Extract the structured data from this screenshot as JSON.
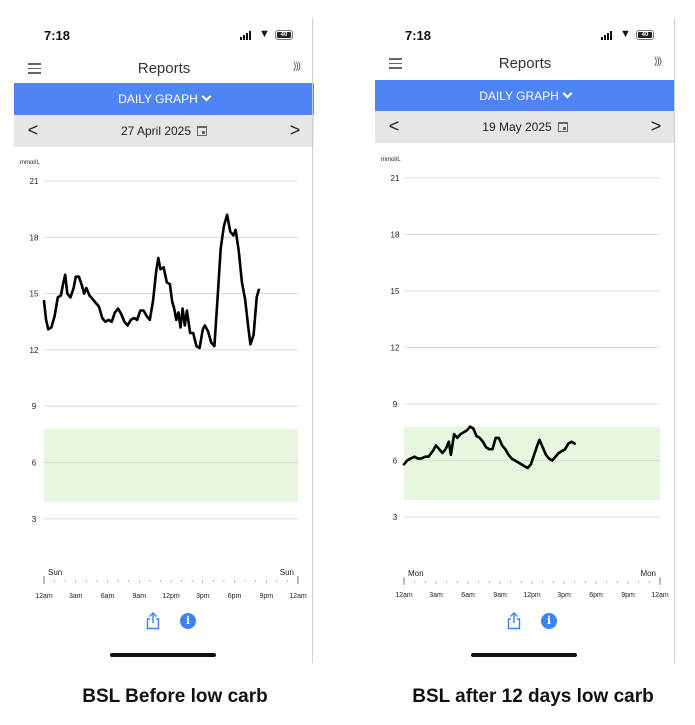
{
  "screens": [
    {
      "status": {
        "time": "7:18",
        "battery": "40"
      },
      "header": {
        "title": "Reports"
      },
      "graph_selector": {
        "label": "DAILY GRAPH"
      },
      "date_nav": {
        "prev": "<",
        "date": "27 April 2025",
        "next": ">"
      },
      "caption": "BSL Before low carb",
      "chart_data": {
        "type": "line",
        "title": "",
        "ylabel": "mmol/L",
        "y_ticks": [
          21,
          18,
          15,
          12,
          9,
          6,
          3
        ],
        "ylim": [
          0,
          21
        ],
        "target_range": [
          3.9,
          7.8
        ],
        "target_color": "#e6f6df",
        "line_color": "#000000",
        "grid": true,
        "day_start_label": "Sun",
        "day_end_label": "Sun",
        "x_tick_labels": [
          "12am",
          "3am",
          "6am",
          "9am",
          "12pm",
          "3pm",
          "6pm",
          "9pm",
          "12am"
        ],
        "xlim_hours": [
          0,
          24
        ],
        "points": [
          [
            0.0,
            14.6
          ],
          [
            0.2,
            13.6
          ],
          [
            0.4,
            13.1
          ],
          [
            0.7,
            13.2
          ],
          [
            1.0,
            13.8
          ],
          [
            1.3,
            14.8
          ],
          [
            1.6,
            14.9
          ],
          [
            1.8,
            15.5
          ],
          [
            2.0,
            16.0
          ],
          [
            2.2,
            15.0
          ],
          [
            2.5,
            14.8
          ],
          [
            2.8,
            15.3
          ],
          [
            3.0,
            15.9
          ],
          [
            3.3,
            15.9
          ],
          [
            3.6,
            15.4
          ],
          [
            3.8,
            15.0
          ],
          [
            4.0,
            15.3
          ],
          [
            4.3,
            14.9
          ],
          [
            4.6,
            14.7
          ],
          [
            4.9,
            14.5
          ],
          [
            5.2,
            14.3
          ],
          [
            5.5,
            13.7
          ],
          [
            5.8,
            13.5
          ],
          [
            6.1,
            13.6
          ],
          [
            6.4,
            13.5
          ],
          [
            6.7,
            14.0
          ],
          [
            7.0,
            14.2
          ],
          [
            7.3,
            13.9
          ],
          [
            7.6,
            13.5
          ],
          [
            7.9,
            13.3
          ],
          [
            8.2,
            13.6
          ],
          [
            8.5,
            13.7
          ],
          [
            8.8,
            13.6
          ],
          [
            9.1,
            14.1
          ],
          [
            9.4,
            14.1
          ],
          [
            9.7,
            13.8
          ],
          [
            10.0,
            13.6
          ],
          [
            10.3,
            14.6
          ],
          [
            10.6,
            16.2
          ],
          [
            10.8,
            16.9
          ],
          [
            11.0,
            16.3
          ],
          [
            11.3,
            16.4
          ],
          [
            11.6,
            15.6
          ],
          [
            11.9,
            15.5
          ],
          [
            12.1,
            14.6
          ],
          [
            12.3,
            14.2
          ],
          [
            12.5,
            13.6
          ],
          [
            12.7,
            14.0
          ],
          [
            12.9,
            13.2
          ],
          [
            13.1,
            14.2
          ],
          [
            13.3,
            13.3
          ],
          [
            13.5,
            14.1
          ],
          [
            13.8,
            12.9
          ],
          [
            14.1,
            12.9
          ],
          [
            14.4,
            12.2
          ],
          [
            14.7,
            12.1
          ],
          [
            15.0,
            13.1
          ],
          [
            15.2,
            13.3
          ],
          [
            15.5,
            13.0
          ],
          [
            15.8,
            12.4
          ],
          [
            16.1,
            12.2
          ],
          [
            16.4,
            14.8
          ],
          [
            16.7,
            17.4
          ],
          [
            17.0,
            18.6
          ],
          [
            17.3,
            19.2
          ],
          [
            17.6,
            18.3
          ],
          [
            17.9,
            18.1
          ],
          [
            18.1,
            18.4
          ],
          [
            18.4,
            17.3
          ],
          [
            18.7,
            15.6
          ],
          [
            19.0,
            14.7
          ],
          [
            19.3,
            13.2
          ],
          [
            19.5,
            12.3
          ],
          [
            19.8,
            12.8
          ],
          [
            20.1,
            14.8
          ],
          [
            20.3,
            15.2
          ]
        ]
      }
    },
    {
      "status": {
        "time": "7:18",
        "battery": "40"
      },
      "header": {
        "title": "Reports"
      },
      "graph_selector": {
        "label": "DAILY GRAPH"
      },
      "date_nav": {
        "prev": "<",
        "date": "19 May 2025",
        "next": ">"
      },
      "caption": "BSL after 12 days low carb",
      "chart_data": {
        "type": "line",
        "title": "",
        "ylabel": "mmol/L",
        "y_ticks": [
          21,
          18,
          15,
          12,
          9,
          6,
          3
        ],
        "ylim": [
          0,
          21
        ],
        "target_range": [
          3.9,
          7.8
        ],
        "target_color": "#e6f6df",
        "line_color": "#000000",
        "grid": true,
        "day_start_label": "Mon",
        "day_end_label": "Mon",
        "x_tick_labels": [
          "12am",
          "3am",
          "6am",
          "9am",
          "12pm",
          "3pm",
          "6pm",
          "9pm",
          "12am"
        ],
        "xlim_hours": [
          0,
          24
        ],
        "points": [
          [
            0.0,
            5.8
          ],
          [
            0.3,
            6.0
          ],
          [
            0.6,
            6.1
          ],
          [
            1.0,
            6.2
          ],
          [
            1.3,
            6.1
          ],
          [
            1.6,
            6.1
          ],
          [
            2.0,
            6.2
          ],
          [
            2.3,
            6.2
          ],
          [
            2.7,
            6.5
          ],
          [
            3.0,
            6.8
          ],
          [
            3.3,
            6.6
          ],
          [
            3.6,
            6.4
          ],
          [
            3.9,
            6.6
          ],
          [
            4.2,
            7.0
          ],
          [
            4.4,
            6.3
          ],
          [
            4.7,
            7.4
          ],
          [
            5.0,
            7.2
          ],
          [
            5.3,
            7.4
          ],
          [
            5.6,
            7.5
          ],
          [
            5.9,
            7.6
          ],
          [
            6.2,
            7.8
          ],
          [
            6.5,
            7.7
          ],
          [
            6.8,
            7.3
          ],
          [
            7.1,
            7.2
          ],
          [
            7.4,
            7.0
          ],
          [
            7.7,
            6.7
          ],
          [
            8.0,
            6.6
          ],
          [
            8.3,
            6.6
          ],
          [
            8.6,
            7.2
          ],
          [
            8.9,
            7.2
          ],
          [
            9.2,
            6.8
          ],
          [
            9.5,
            6.6
          ],
          [
            9.8,
            6.3
          ],
          [
            10.1,
            6.1
          ],
          [
            10.4,
            6.0
          ],
          [
            10.7,
            5.9
          ],
          [
            11.0,
            5.8
          ],
          [
            11.3,
            5.7
          ],
          [
            11.6,
            5.6
          ],
          [
            11.9,
            5.8
          ],
          [
            12.2,
            6.3
          ],
          [
            12.5,
            6.8
          ],
          [
            12.7,
            7.1
          ],
          [
            13.0,
            6.7
          ],
          [
            13.3,
            6.3
          ],
          [
            13.6,
            6.1
          ],
          [
            13.9,
            6.0
          ],
          [
            14.2,
            6.2
          ],
          [
            14.5,
            6.4
          ],
          [
            14.8,
            6.5
          ],
          [
            15.1,
            6.6
          ],
          [
            15.4,
            6.9
          ],
          [
            15.7,
            7.0
          ],
          [
            16.0,
            6.9
          ]
        ]
      }
    }
  ]
}
